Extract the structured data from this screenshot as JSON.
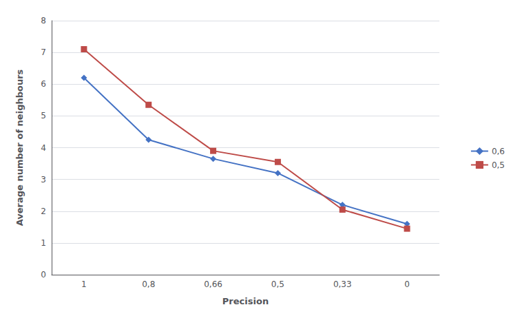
{
  "chart_data": {
    "type": "line",
    "xlabel": "Precision",
    "ylabel": "Average number of neighbours",
    "categories": [
      "1",
      "0,8",
      "0,66",
      "0,5",
      "0,33",
      "0"
    ],
    "series": [
      {
        "name": "0,6",
        "color": "#4472C4",
        "marker": "diamond",
        "values": [
          6.2,
          4.25,
          3.65,
          3.2,
          2.2,
          1.6
        ]
      },
      {
        "name": "0,5",
        "color": "#BE4B48",
        "marker": "square",
        "values": [
          7.1,
          5.35,
          3.9,
          3.55,
          2.05,
          1.45
        ]
      }
    ],
    "ylim": [
      0,
      8
    ],
    "yticks": [
      0,
      1,
      2,
      3,
      4,
      5,
      6,
      7,
      8
    ],
    "grid": true,
    "legend": "right"
  }
}
